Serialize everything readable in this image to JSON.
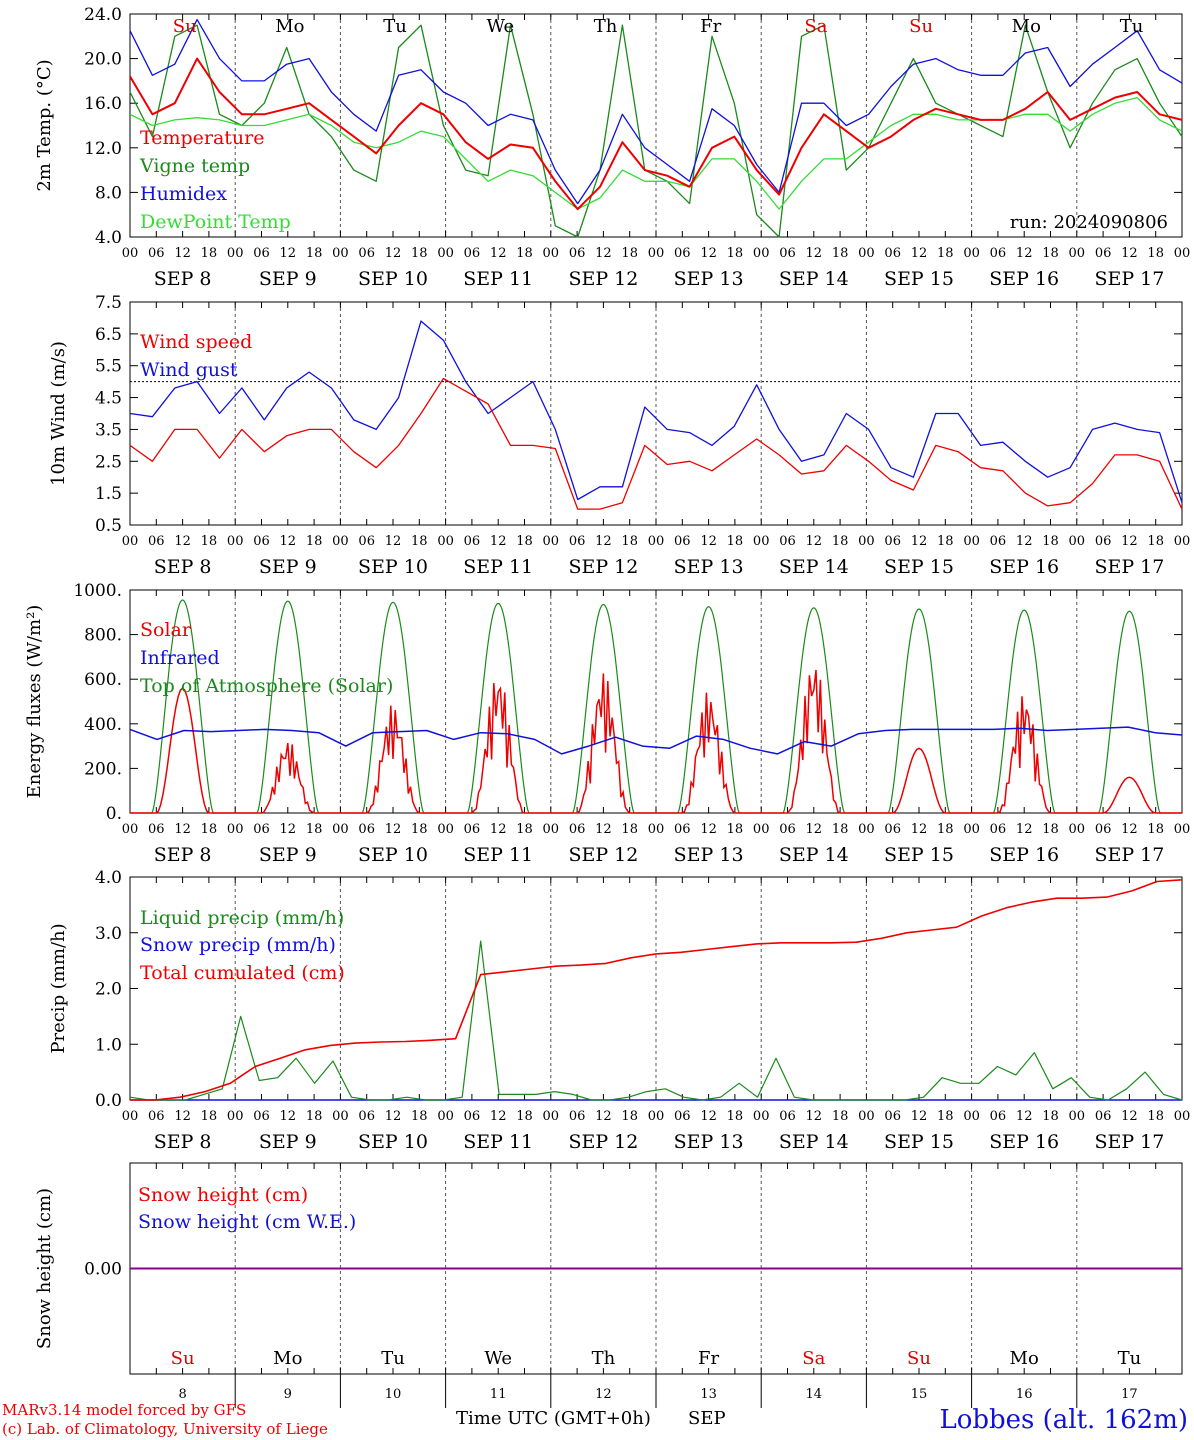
{
  "run_label": "run: 2024090806",
  "location": "Lobbes (alt. 162m)",
  "credit_line1": "MARv3.14 model forced by GFS",
  "credit_line2": "(c) Lab. of Climatology, University of Liege",
  "xaxis_title": "Time UTC (GMT+0h)",
  "month_label": "SEP",
  "hour_ticks": [
    "00",
    "06",
    "12",
    "18"
  ],
  "day_numbers": [
    "8",
    "9",
    "10",
    "11",
    "12",
    "13",
    "14",
    "15",
    "16",
    "17"
  ],
  "date_labels": [
    "SEP  8",
    "SEP  9",
    "SEP 10",
    "SEP 11",
    "SEP 12",
    "SEP 13",
    "SEP 14",
    "SEP 15",
    "SEP 16",
    "SEP 17"
  ],
  "weekdays": [
    {
      "label": "Su",
      "color": "#e00000"
    },
    {
      "label": "Mo",
      "color": "#000000"
    },
    {
      "label": "Tu",
      "color": "#000000"
    },
    {
      "label": "We",
      "color": "#000000"
    },
    {
      "label": "Th",
      "color": "#000000"
    },
    {
      "label": "Fr",
      "color": "#000000"
    },
    {
      "label": "Sa",
      "color": "#e00000"
    },
    {
      "label": "Su",
      "color": "#e00000"
    },
    {
      "label": "Mo",
      "color": "#000000"
    },
    {
      "label": "Tu",
      "color": "#000000"
    }
  ],
  "colors": {
    "red": "#ee0000",
    "green": "#1a8a1a",
    "blue": "#1010dd",
    "lightgreen": "#33dd33",
    "purple": "#8b008b",
    "axis": "#000000",
    "grid": "#555555"
  },
  "chart_data": [
    {
      "id": "temperature",
      "type": "line",
      "ylabel": "2m Temp. (°C)",
      "ylim": [
        4.0,
        24.0
      ],
      "yticks": [
        "4.0",
        "8.0",
        "12.0",
        "16.0",
        "20.0",
        "24.0"
      ],
      "x_unit": "hours since 2024-09-08 00 UTC, step 6h",
      "series": [
        {
          "name": "Temperature",
          "color": "#ee0000",
          "values": [
            18.4,
            15.0,
            16.0,
            20.0,
            17.0,
            15.0,
            15.0,
            15.5,
            16.0,
            14.5,
            13.0,
            11.5,
            14.0,
            16.0,
            15.0,
            12.5,
            11.0,
            12.3,
            12.0,
            9.0,
            6.5,
            8.5,
            12.5,
            10.0,
            9.5,
            8.5,
            12.0,
            13.0,
            10.0,
            7.8,
            12.0,
            15.0,
            13.5,
            12.0,
            13.0,
            14.5,
            15.5,
            15.0,
            14.5,
            14.5,
            15.5,
            17.0,
            14.5,
            15.5,
            16.5,
            17.0,
            15.0,
            14.5
          ]
        },
        {
          "name": "Vigne temp",
          "color": "#1a8a1a",
          "values": [
            17.0,
            13.0,
            22.0,
            23.0,
            15.0,
            14.0,
            16.0,
            21.0,
            15.0,
            13.0,
            10.0,
            9.0,
            21.0,
            23.0,
            14.0,
            10.0,
            9.5,
            23.0,
            15.0,
            5.0,
            4.0,
            10.0,
            23.0,
            10.0,
            9.0,
            7.0,
            22.0,
            16.0,
            6.0,
            4.0,
            22.0,
            23.0,
            10.0,
            12.0,
            16.0,
            20.0,
            16.0,
            15.0,
            14.0,
            13.0,
            23.0,
            17.0,
            12.0,
            16.0,
            19.0,
            20.0,
            16.0,
            13.0
          ]
        },
        {
          "name": "Humidex",
          "color": "#1010dd",
          "values": [
            22.5,
            18.5,
            19.5,
            23.5,
            20.0,
            18.0,
            18.0,
            19.5,
            20.0,
            17.0,
            15.0,
            13.5,
            18.5,
            19.0,
            17.0,
            16.0,
            14.0,
            15.0,
            14.5,
            10.0,
            7.0,
            10.0,
            15.0,
            12.0,
            10.5,
            9.0,
            15.5,
            14.0,
            10.5,
            8.0,
            16.0,
            16.0,
            14.0,
            15.0,
            17.5,
            19.5,
            20.0,
            19.0,
            18.5,
            18.5,
            20.5,
            21.0,
            17.5,
            19.5,
            21.0,
            22.5,
            19.0,
            17.8
          ]
        },
        {
          "name": "DewPoint Temp",
          "color": "#33dd33",
          "values": [
            15.0,
            14.0,
            14.5,
            14.7,
            14.5,
            14.0,
            14.0,
            14.5,
            15.0,
            14.0,
            12.5,
            12.0,
            12.5,
            13.5,
            13.0,
            11.0,
            9.0,
            10.0,
            9.5,
            8.0,
            6.5,
            7.5,
            10.0,
            9.0,
            9.0,
            8.5,
            11.0,
            11.0,
            9.0,
            6.5,
            9.0,
            11.0,
            11.0,
            12.5,
            14.0,
            15.0,
            15.0,
            14.5,
            14.5,
            14.5,
            15.0,
            15.0,
            13.5,
            15.0,
            16.0,
            16.5,
            14.5,
            13.5
          ]
        }
      ]
    },
    {
      "id": "wind",
      "type": "line",
      "ylabel": "10m Wind (m/s)",
      "ylim": [
        0.5,
        7.5
      ],
      "yticks": [
        "0.5",
        "1.5",
        "2.5",
        "3.5",
        "4.5",
        "5.5",
        "6.5",
        "7.5"
      ],
      "reference_line": 5.0,
      "series": [
        {
          "name": "Wind speed",
          "color": "#ee0000",
          "values": [
            3.0,
            2.5,
            3.5,
            3.5,
            2.6,
            3.5,
            2.8,
            3.3,
            3.5,
            3.5,
            2.8,
            2.3,
            3.0,
            4.0,
            5.1,
            4.7,
            4.3,
            3.0,
            3.0,
            2.9,
            1.0,
            1.0,
            1.2,
            3.0,
            2.4,
            2.5,
            2.2,
            2.7,
            3.2,
            2.7,
            2.1,
            2.2,
            3.0,
            2.5,
            1.9,
            1.6,
            3.0,
            2.8,
            2.3,
            2.2,
            1.5,
            1.1,
            1.2,
            1.8,
            2.7,
            2.7,
            2.5,
            1.0
          ]
        },
        {
          "name": "Wind gust",
          "color": "#1010dd",
          "values": [
            4.0,
            3.9,
            4.8,
            5.0,
            4.0,
            4.8,
            3.8,
            4.8,
            5.3,
            4.8,
            3.8,
            3.5,
            4.5,
            6.9,
            6.3,
            5.0,
            4.0,
            4.5,
            5.0,
            3.5,
            1.3,
            1.7,
            1.7,
            4.2,
            3.5,
            3.4,
            3.0,
            3.6,
            4.9,
            3.5,
            2.5,
            2.7,
            4.0,
            3.5,
            2.3,
            2.0,
            4.0,
            4.0,
            3.0,
            3.1,
            2.5,
            2.0,
            2.3,
            3.5,
            3.7,
            3.5,
            3.4,
            1.2
          ]
        }
      ]
    },
    {
      "id": "energy",
      "type": "line",
      "ylabel": "Energy fluxes (W/m²)",
      "ylim": [
        0,
        1000
      ],
      "yticks": [
        "0.",
        "200.",
        "400.",
        "600.",
        "800.",
        "1000."
      ],
      "series": [
        {
          "name": "Solar",
          "color": "#ee0000",
          "peaks": [
            560,
            330,
            490,
            640,
            640,
            550,
            700,
            290,
            540,
            160
          ]
        },
        {
          "name": "Infrared",
          "color": "#1010dd",
          "values": [
            375,
            330,
            370,
            365,
            370,
            375,
            370,
            360,
            300,
            360,
            365,
            370,
            330,
            360,
            355,
            330,
            265,
            300,
            340,
            300,
            290,
            345,
            330,
            290,
            265,
            320,
            300,
            355,
            370,
            375,
            375,
            375,
            375,
            380,
            370,
            375,
            380,
            385,
            360,
            350
          ]
        },
        {
          "name": "Top of Atmosphere (Solar)",
          "color": "#1a8a1a",
          "peaks": [
            955,
            950,
            945,
            940,
            935,
            925,
            920,
            915,
            910,
            905
          ]
        }
      ]
    },
    {
      "id": "precip",
      "type": "line",
      "ylabel": "Precip (mm/h)",
      "ylim": [
        0.0,
        4.0
      ],
      "yticks": [
        "0.0",
        "1.0",
        "2.0",
        "3.0",
        "4.0"
      ],
      "series": [
        {
          "name": "Liquid precip (mm/h)",
          "color": "#1a8a1a",
          "values": [
            0.05,
            0.0,
            0.0,
            0.0,
            0.1,
            0.2,
            1.5,
            0.35,
            0.4,
            0.75,
            0.3,
            0.7,
            0.05,
            0.0,
            0.0,
            0.05,
            0.0,
            0.0,
            0.05,
            2.85,
            0.1,
            0.1,
            0.1,
            0.15,
            0.1,
            0.0,
            0.0,
            0.05,
            0.15,
            0.2,
            0.05,
            0.0,
            0.05,
            0.3,
            0.05,
            0.75,
            0.05,
            0.0,
            0.0,
            0.0,
            0.0,
            0.0,
            0.0,
            0.05,
            0.4,
            0.3,
            0.3,
            0.6,
            0.45,
            0.85,
            0.2,
            0.4,
            0.05,
            0.0,
            0.2,
            0.5,
            0.1,
            0.0
          ]
        },
        {
          "name": "Snow precip (mm/h)",
          "color": "#1010dd",
          "values": [
            0.0,
            0.0
          ]
        },
        {
          "name": "Total cumulated (cm)",
          "color": "#ee0000",
          "values": [
            0.0,
            0.0,
            0.05,
            0.15,
            0.3,
            0.6,
            0.75,
            0.9,
            0.98,
            1.02,
            1.04,
            1.05,
            1.07,
            1.1,
            2.25,
            2.3,
            2.35,
            2.4,
            2.42,
            2.45,
            2.55,
            2.62,
            2.65,
            2.7,
            2.75,
            2.8,
            2.82,
            2.82,
            2.82,
            2.83,
            2.9,
            3.0,
            3.05,
            3.1,
            3.3,
            3.45,
            3.55,
            3.62,
            3.62,
            3.64,
            3.75,
            3.92,
            3.95
          ]
        }
      ]
    },
    {
      "id": "snow",
      "type": "line",
      "ylabel": "Snow height (cm)",
      "ylim": [
        -1,
        1
      ],
      "yticks": [
        "0.00"
      ],
      "series": [
        {
          "name": "Snow height (cm)",
          "color": "#ee0000",
          "values": [
            0.0,
            0.0
          ]
        },
        {
          "name": "Snow height (cm W.E.)",
          "color": "#1010dd",
          "values": [
            0.0,
            0.0
          ]
        }
      ]
    }
  ]
}
